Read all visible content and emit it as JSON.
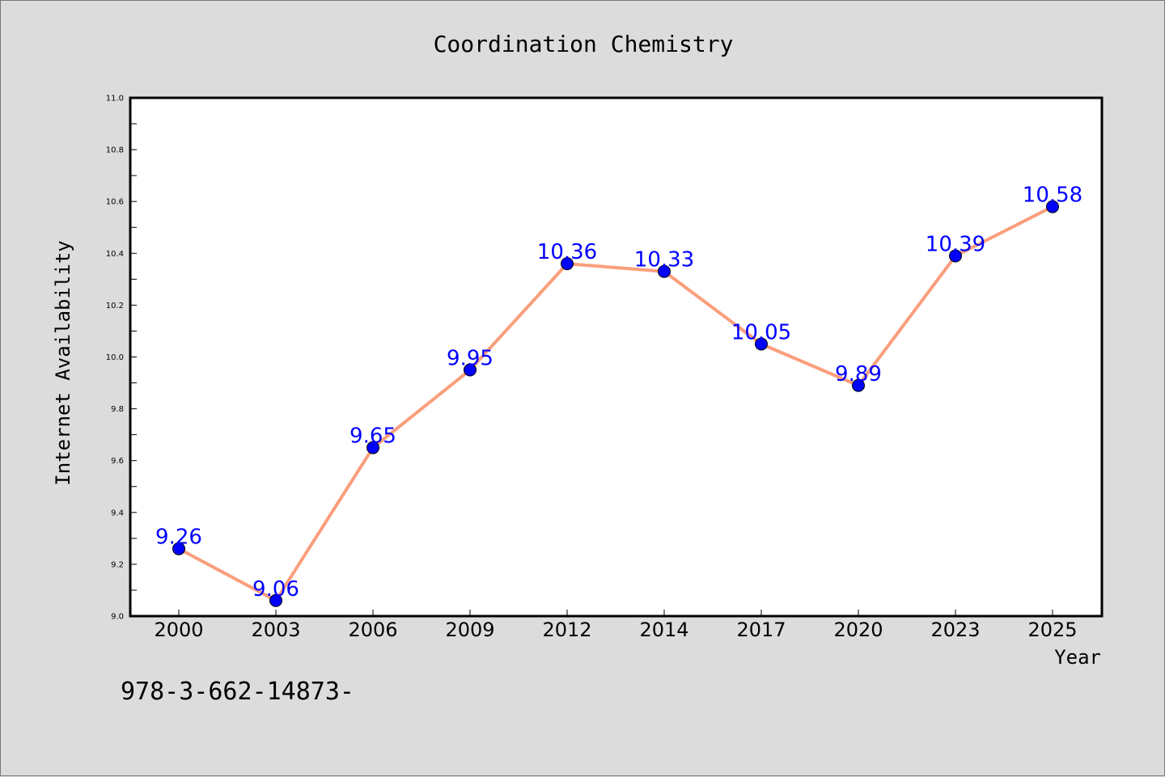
{
  "colors": {
    "background": "#dcdcdc",
    "plot_background": "#ffffff",
    "line": "#fa9e7c",
    "marker": "#0000ff",
    "data_label": "#0000ff"
  },
  "footer": {
    "text": "978-3-662-14873-"
  },
  "chart_data": {
    "type": "line",
    "title": "Coordination Chemistry",
    "xlabel": "Year",
    "ylabel": "Internet Availability",
    "categories": [
      "2000",
      "2003",
      "2006",
      "2009",
      "2012",
      "2014",
      "2017",
      "2020",
      "2023",
      "2025"
    ],
    "series": [
      {
        "values": [
          9.26,
          9.06,
          9.65,
          9.95,
          10.36,
          10.33,
          10.05,
          9.89,
          10.39,
          10.58
        ]
      }
    ],
    "data_labels": [
      "9.26",
      "9.06",
      "9.65",
      "9.95",
      "10.36",
      "10.33",
      "10.05",
      "9.89",
      "10.39",
      "10.58"
    ],
    "ylim": [
      9.0,
      11.0
    ],
    "yticks": [
      "9.0",
      "9.2",
      "9.4",
      "9.6",
      "9.8",
      "10.0",
      "10.2",
      "10.4",
      "10.6",
      "10.8",
      "11.0"
    ],
    "grid": false,
    "legend": "none"
  }
}
